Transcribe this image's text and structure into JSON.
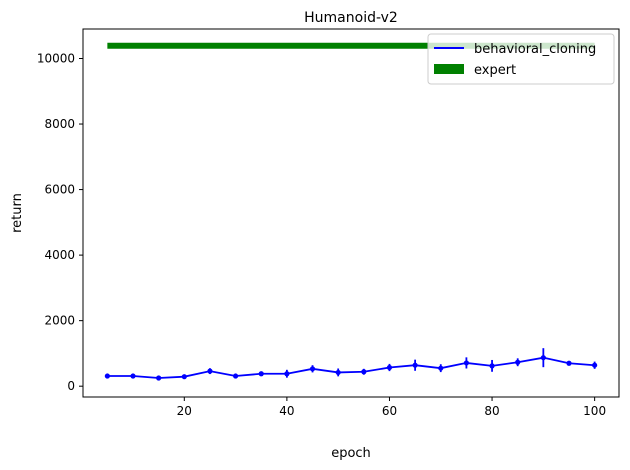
{
  "chart_data": {
    "type": "line",
    "title": "Humanoid-v2",
    "xlabel": "epoch",
    "ylabel": "return",
    "xlim": [
      0.25,
      104.75
    ],
    "ylim": [
      -330,
      10900
    ],
    "xticks": [
      20,
      40,
      60,
      80,
      100
    ],
    "yticks": [
      0,
      2000,
      4000,
      6000,
      8000,
      10000
    ],
    "grid": false,
    "legend_position": "top-right",
    "series": [
      {
        "name": "behavioral_cloning",
        "color": "#0000ff",
        "x": [
          5,
          10,
          15,
          20,
          25,
          30,
          35,
          40,
          45,
          50,
          55,
          60,
          65,
          70,
          75,
          80,
          85,
          90,
          95,
          100
        ],
        "y": [
          310,
          310,
          250,
          290,
          460,
          310,
          380,
          380,
          530,
          420,
          440,
          570,
          640,
          550,
          710,
          620,
          730,
          870,
          700,
          640
        ],
        "err": [
          40,
          40,
          30,
          50,
          90,
          40,
          60,
          120,
          110,
          120,
          90,
          110,
          170,
          120,
          170,
          180,
          120,
          290,
          60,
          110
        ]
      },
      {
        "name": "expert",
        "color": "#008000",
        "x": [
          5,
          100
        ],
        "y": [
          10390,
          10390
        ]
      }
    ]
  }
}
